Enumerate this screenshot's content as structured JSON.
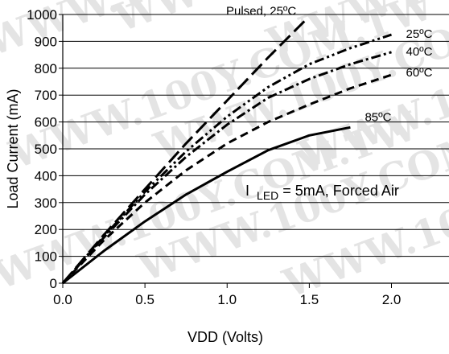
{
  "chart_data": {
    "type": "line",
    "xlabel": "VDD (Volts)",
    "ylabel": "Load Current (mA)",
    "xlim": [
      0,
      2.35
    ],
    "ylim": [
      0,
      1000
    ],
    "x_ticks": [
      "0.0",
      "0.5",
      "1.0",
      "1.5",
      "2.0"
    ],
    "y_ticks": [
      "0",
      "100",
      "200",
      "300",
      "400",
      "500",
      "600",
      "700",
      "800",
      "900",
      "1000"
    ],
    "grid": "horizontal",
    "annotation": {
      "prefix": "I",
      "subscript": "LED",
      "suffix": " = 5mA, Forced Air"
    },
    "watermark": "WWW.100Y.COM.TW",
    "series": [
      {
        "name": "Pulsed, 25ºC",
        "style": "long-dash",
        "x": [
          0,
          0.25,
          0.5,
          0.75,
          1.0,
          1.25,
          1.47
        ],
        "y": [
          0,
          180,
          350,
          520,
          680,
          840,
          975
        ]
      },
      {
        "name": "25ºC",
        "style": "dash-dot-dot",
        "x": [
          0,
          0.25,
          0.5,
          0.75,
          1.0,
          1.25,
          1.5,
          1.75,
          2.0
        ],
        "y": [
          0,
          175,
          340,
          490,
          620,
          730,
          815,
          875,
          925
        ]
      },
      {
        "name": "40ºC",
        "style": "dash-dot",
        "x": [
          0,
          0.25,
          0.5,
          0.75,
          1.0,
          1.25,
          1.5,
          1.75,
          2.0
        ],
        "y": [
          0,
          170,
          330,
          470,
          590,
          690,
          760,
          815,
          860
        ]
      },
      {
        "name": "60ºC",
        "style": "short-dash",
        "x": [
          0,
          0.25,
          0.5,
          0.75,
          1.0,
          1.25,
          1.5,
          1.75,
          2.0
        ],
        "y": [
          0,
          160,
          300,
          420,
          520,
          600,
          665,
          725,
          775
        ]
      },
      {
        "name": "85ºC",
        "style": "solid",
        "x": [
          0,
          0.25,
          0.5,
          0.75,
          1.0,
          1.25,
          1.5,
          1.75
        ],
        "y": [
          0,
          120,
          230,
          330,
          415,
          495,
          550,
          580
        ]
      }
    ]
  }
}
